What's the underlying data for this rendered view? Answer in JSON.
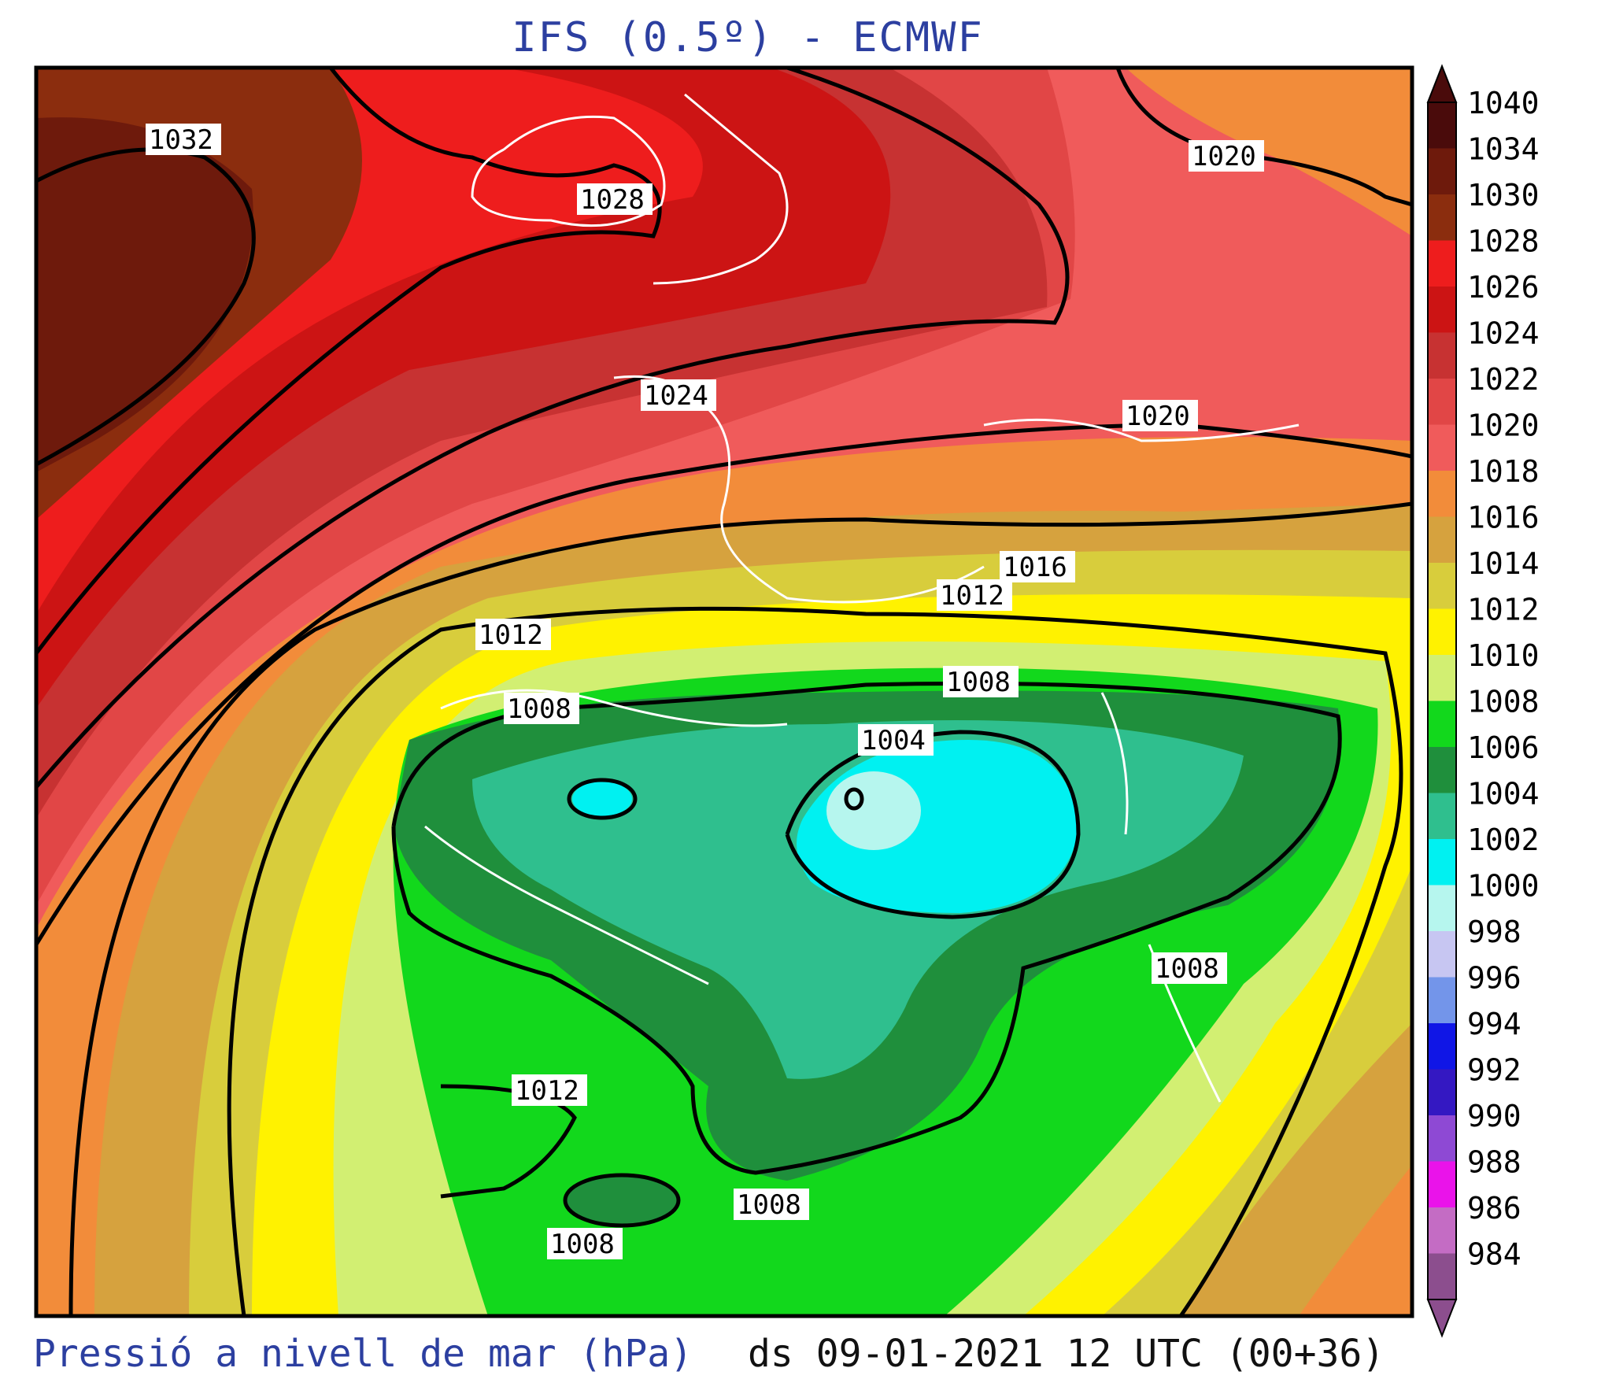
{
  "title": "IFS (0.5º) - ECMWF",
  "footer": {
    "variable": "Pressió a nivell de mar (hPa)",
    "valid_time": "ds 09-01-2021 12 UTC (00+36)"
  },
  "legend": {
    "unit": "hPa",
    "levels": [
      {
        "value": "1040",
        "color": "#4a0b0b"
      },
      {
        "value": "1034",
        "color": "#6e1a0c"
      },
      {
        "value": "1030",
        "color": "#8b2d0e"
      },
      {
        "value": "1028",
        "color": "#ee1d1d"
      },
      {
        "value": "1026",
        "color": "#cc1414"
      },
      {
        "value": "1024",
        "color": "#c73232"
      },
      {
        "value": "1022",
        "color": "#e14646"
      },
      {
        "value": "1020",
        "color": "#f05b5b"
      },
      {
        "value": "1018",
        "color": "#f28c3a"
      },
      {
        "value": "1016",
        "color": "#d6a23e"
      },
      {
        "value": "1014",
        "color": "#d8cd3c"
      },
      {
        "value": "1012",
        "color": "#fff200"
      },
      {
        "value": "1010",
        "color": "#d2ef72"
      },
      {
        "value": "1008",
        "color": "#12d81c"
      },
      {
        "value": "1006",
        "color": "#1f8f3c"
      },
      {
        "value": "1004",
        "color": "#2fbf8e"
      },
      {
        "value": "1002",
        "color": "#00f1f1"
      },
      {
        "value": "1000",
        "color": "#b6f6ee"
      },
      {
        "value": "998",
        "color": "#c7c6f2"
      },
      {
        "value": "996",
        "color": "#7395ea"
      },
      {
        "value": "994",
        "color": "#1016e6"
      },
      {
        "value": "992",
        "color": "#3418c2"
      },
      {
        "value": "990",
        "color": "#8e49d4"
      },
      {
        "value": "988",
        "color": "#ea13ea"
      },
      {
        "value": "986",
        "color": "#c46cc4"
      },
      {
        "value": "984",
        "color": "#8c4e8e"
      }
    ]
  },
  "isobar_labels": [
    {
      "id": "l1032",
      "text": "1032"
    },
    {
      "id": "l1028",
      "text": "1028"
    },
    {
      "id": "l1020a",
      "text": "1020"
    },
    {
      "id": "l1024",
      "text": "1024"
    },
    {
      "id": "l1020b",
      "text": "1020"
    },
    {
      "id": "l1016",
      "text": "1016"
    },
    {
      "id": "l1012a",
      "text": "1012"
    },
    {
      "id": "l1012b",
      "text": "1012"
    },
    {
      "id": "l1008a",
      "text": "1008"
    },
    {
      "id": "l1008b",
      "text": "1008"
    },
    {
      "id": "l1004",
      "text": "1004"
    },
    {
      "id": "l1008c",
      "text": "1008"
    },
    {
      "id": "l1012c",
      "text": "1012"
    },
    {
      "id": "l1008d",
      "text": "1008"
    },
    {
      "id": "l1008e",
      "text": "1008"
    }
  ]
}
